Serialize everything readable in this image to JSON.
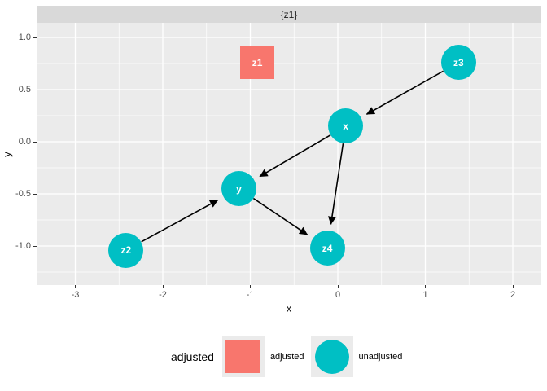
{
  "facet": {
    "strip_label": "{z1}"
  },
  "axes": {
    "x": {
      "title": "x",
      "ticks": [
        "-3",
        "-2",
        "-1",
        "0",
        "1",
        "2"
      ]
    },
    "y": {
      "title": "y",
      "ticks": [
        "1.0",
        "0.5",
        "0.0",
        "-0.5",
        "-1.0"
      ]
    }
  },
  "legend": {
    "title": "adjusted",
    "items": [
      {
        "label": "adjusted",
        "shape": "square",
        "color": "#F8766D"
      },
      {
        "label": "unadjusted",
        "shape": "circle",
        "color": "#00BFC4"
      }
    ]
  },
  "colors": {
    "adjusted": "#F8766D",
    "unadjusted": "#00BFC4",
    "panel_bg": "#EBEBEB",
    "strip_bg": "#D9D9D9",
    "gridline": "#FFFFFF",
    "edge": "#000000"
  },
  "chart_data": {
    "type": "scatter",
    "subtype": "dag",
    "title": "{z1}",
    "xlabel": "x",
    "ylabel": "y",
    "xlim": [
      -3.44,
      2.33
    ],
    "ylim": [
      -1.38,
      1.14
    ],
    "x_ticks": [
      -3,
      -2,
      -1,
      0,
      1,
      2
    ],
    "y_ticks": [
      1.0,
      0.5,
      0.0,
      -0.5,
      -1.0
    ],
    "grid": true,
    "legend_position": "bottom",
    "nodes": [
      {
        "name": "z1",
        "x": -0.92,
        "y": 0.76,
        "status": "adjusted"
      },
      {
        "name": "z2",
        "x": -2.42,
        "y": -1.04,
        "status": "unadjusted"
      },
      {
        "name": "z3",
        "x": 1.38,
        "y": 0.76,
        "status": "unadjusted"
      },
      {
        "name": "x",
        "x": 0.09,
        "y": 0.15,
        "status": "unadjusted"
      },
      {
        "name": "y",
        "x": -1.13,
        "y": -0.45,
        "status": "unadjusted"
      },
      {
        "name": "z4",
        "x": -0.12,
        "y": -1.02,
        "status": "unadjusted"
      }
    ],
    "edges": [
      [
        "z2",
        "y"
      ],
      [
        "z3",
        "x"
      ],
      [
        "x",
        "y"
      ],
      [
        "x",
        "z4"
      ],
      [
        "y",
        "z4"
      ]
    ]
  }
}
